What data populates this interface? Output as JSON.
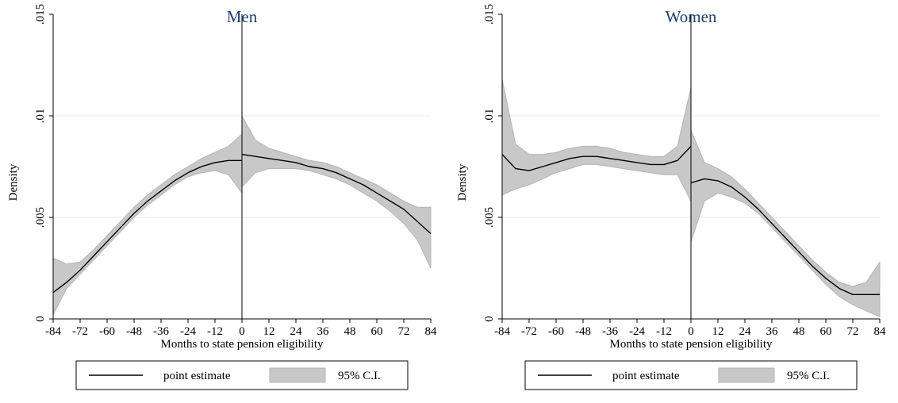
{
  "chart_data": [
    {
      "type": "line",
      "title": "Men",
      "xlabel": "Months to state pension eligibility",
      "ylabel": "Density",
      "xlim": [
        -84,
        84
      ],
      "ylim": [
        0,
        0.015
      ],
      "xticks": [
        -84,
        -72,
        -60,
        -48,
        -36,
        -24,
        -12,
        0,
        12,
        24,
        36,
        48,
        60,
        72,
        84
      ],
      "yticks": [
        0,
        0.005,
        0.01,
        0.015
      ],
      "ytick_labels": [
        "0",
        ".005",
        ".01",
        ".015"
      ],
      "cutoff": 0,
      "grid": "horizontal",
      "legend": {
        "position": "bottom",
        "items": [
          "point estimate",
          "95% C.I."
        ]
      },
      "series": [
        {
          "name": "point estimate",
          "segments": [
            {
              "x": [
                -84,
                -78,
                -72,
                -66,
                -60,
                -54,
                -48,
                -42,
                -36,
                -30,
                -24,
                -18,
                -12,
                -6,
                0
              ],
              "y": [
                0.0013,
                0.0018,
                0.0024,
                0.0031,
                0.0038,
                0.0045,
                0.0052,
                0.0058,
                0.0063,
                0.0068,
                0.0072,
                0.0075,
                0.0077,
                0.0078,
                0.0078
              ]
            },
            {
              "x": [
                0,
                6,
                12,
                18,
                24,
                30,
                36,
                42,
                48,
                54,
                60,
                66,
                72,
                78,
                84
              ],
              "y": [
                0.0081,
                0.008,
                0.0079,
                0.0078,
                0.0077,
                0.0075,
                0.0074,
                0.0072,
                0.0069,
                0.0066,
                0.0062,
                0.0058,
                0.0054,
                0.0048,
                0.0042
              ]
            }
          ]
        },
        {
          "name": "95% C.I.",
          "segments": [
            {
              "x": [
                -84,
                -78,
                -72,
                -66,
                -60,
                -54,
                -48,
                -42,
                -36,
                -30,
                -24,
                -18,
                -12,
                -6,
                0
              ],
              "lower": [
                0.0002,
                0.0015,
                0.0022,
                0.0029,
                0.0036,
                0.0043,
                0.005,
                0.0056,
                0.0061,
                0.0066,
                0.007,
                0.0072,
                0.0073,
                0.0071,
                0.0062
              ],
              "upper": [
                0.003,
                0.0027,
                0.0028,
                0.0034,
                0.0041,
                0.0048,
                0.0055,
                0.0061,
                0.0066,
                0.0071,
                0.0075,
                0.0079,
                0.0082,
                0.0085,
                0.0091
              ]
            },
            {
              "x": [
                0,
                6,
                12,
                18,
                24,
                30,
                36,
                42,
                48,
                54,
                60,
                66,
                72,
                78,
                84
              ],
              "lower": [
                0.0065,
                0.0072,
                0.0074,
                0.0074,
                0.0074,
                0.0073,
                0.0071,
                0.0069,
                0.0066,
                0.0062,
                0.0058,
                0.0053,
                0.0047,
                0.0039,
                0.0025
              ],
              "upper": [
                0.01,
                0.0088,
                0.0084,
                0.0082,
                0.008,
                0.0078,
                0.0077,
                0.0075,
                0.0072,
                0.0069,
                0.0066,
                0.0062,
                0.0058,
                0.0055,
                0.0055
              ]
            }
          ]
        }
      ]
    },
    {
      "type": "line",
      "title": "Women",
      "xlabel": "Months to state pension eligibility",
      "ylabel": "Density",
      "xlim": [
        -84,
        84
      ],
      "ylim": [
        0,
        0.015
      ],
      "xticks": [
        -84,
        -72,
        -60,
        -48,
        -36,
        -24,
        -12,
        0,
        12,
        24,
        36,
        48,
        60,
        72,
        84
      ],
      "yticks": [
        0,
        0.005,
        0.01,
        0.015
      ],
      "ytick_labels": [
        "0",
        ".005",
        ".01",
        ".015"
      ],
      "cutoff": 0,
      "grid": "horizontal",
      "legend": {
        "position": "bottom",
        "items": [
          "point estimate",
          "95% C.I."
        ]
      },
      "series": [
        {
          "name": "point estimate",
          "segments": [
            {
              "x": [
                -84,
                -78,
                -72,
                -66,
                -60,
                -54,
                -48,
                -42,
                -36,
                -30,
                -24,
                -18,
                -12,
                -6,
                0
              ],
              "y": [
                0.0081,
                0.0074,
                0.0073,
                0.0075,
                0.0077,
                0.0079,
                0.008,
                0.008,
                0.0079,
                0.0078,
                0.0077,
                0.0076,
                0.0076,
                0.0078,
                0.0085
              ]
            },
            {
              "x": [
                0,
                6,
                12,
                18,
                24,
                30,
                36,
                42,
                48,
                54,
                60,
                66,
                72,
                78,
                84
              ],
              "y": [
                0.0067,
                0.0069,
                0.0068,
                0.0065,
                0.006,
                0.0054,
                0.0047,
                0.004,
                0.0033,
                0.0026,
                0.002,
                0.0015,
                0.0012,
                0.0012,
                0.0012
              ]
            }
          ]
        },
        {
          "name": "95% C.I.",
          "segments": [
            {
              "x": [
                -84,
                -78,
                -72,
                -66,
                -60,
                -54,
                -48,
                -42,
                -36,
                -30,
                -24,
                -18,
                -12,
                -6,
                0
              ],
              "lower": [
                0.0061,
                0.0064,
                0.0066,
                0.0069,
                0.0072,
                0.0074,
                0.0076,
                0.0076,
                0.0075,
                0.0074,
                0.0073,
                0.0072,
                0.0071,
                0.0071,
                0.0058
              ],
              "upper": [
                0.0118,
                0.0086,
                0.0081,
                0.0081,
                0.0082,
                0.0084,
                0.0085,
                0.0085,
                0.0084,
                0.0082,
                0.0081,
                0.008,
                0.008,
                0.0085,
                0.0114
              ]
            },
            {
              "x": [
                0,
                6,
                12,
                18,
                24,
                30,
                36,
                42,
                48,
                54,
                60,
                66,
                72,
                78,
                84
              ],
              "lower": [
                0.0038,
                0.0058,
                0.0062,
                0.006,
                0.0057,
                0.0052,
                0.0045,
                0.0038,
                0.0031,
                0.0024,
                0.0017,
                0.0011,
                0.0007,
                0.0004,
                0.0001
              ]
            },
            {
              "x": [
                0,
                6,
                12,
                18,
                24,
                30,
                36,
                42,
                48,
                54,
                60,
                66,
                72,
                78,
                84
              ],
              "upper": [
                0.0093,
                0.0077,
                0.0074,
                0.007,
                0.0064,
                0.0057,
                0.005,
                0.0043,
                0.0036,
                0.0029,
                0.0023,
                0.0018,
                0.0016,
                0.0018,
                0.0028
              ]
            }
          ]
        }
      ]
    }
  ]
}
